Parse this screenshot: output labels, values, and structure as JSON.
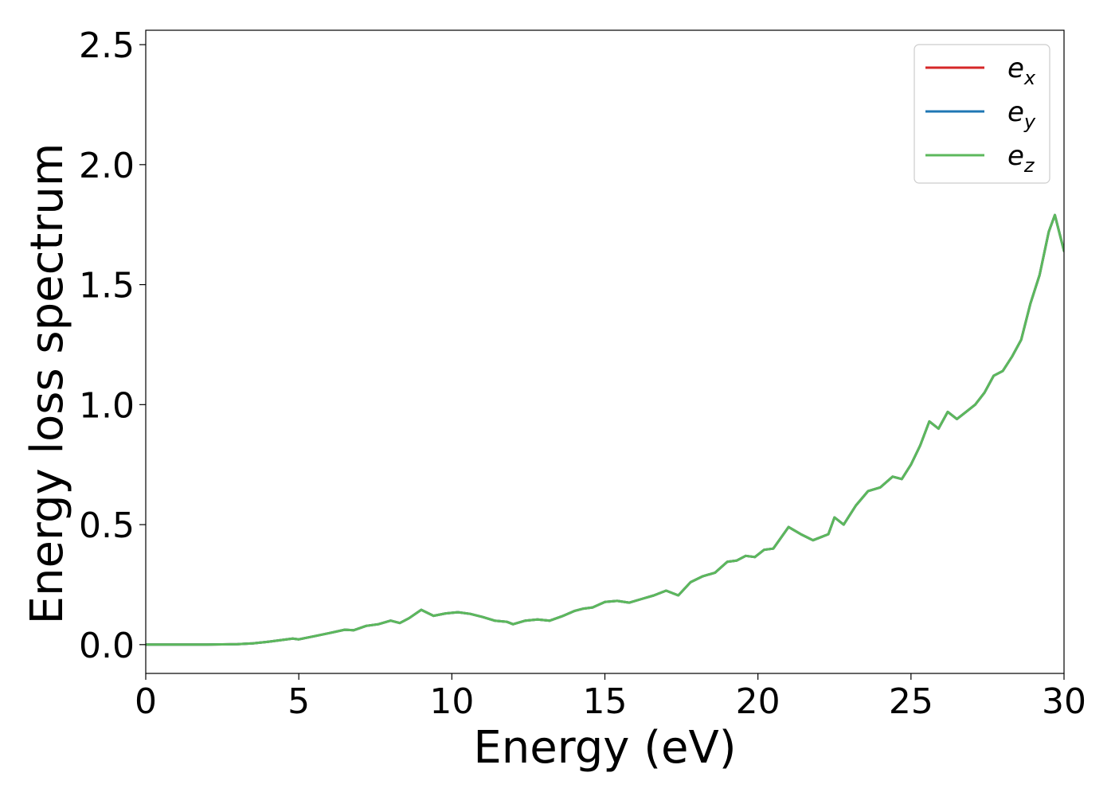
{
  "chart_data": {
    "type": "line",
    "xlabel": "Energy (eV)",
    "ylabel": "Energy loss spectrum",
    "xlim": [
      0,
      30
    ],
    "ylim": [
      -0.12,
      2.56
    ],
    "x_ticks": [
      0,
      5,
      10,
      15,
      20,
      25,
      30
    ],
    "x_tick_labels": [
      "0",
      "5",
      "10",
      "15",
      "20",
      "25",
      "30"
    ],
    "y_ticks": [
      0.0,
      0.5,
      1.0,
      1.5,
      2.0,
      2.5
    ],
    "y_tick_labels": [
      "0.0",
      "0.5",
      "1.0",
      "1.5",
      "2.0",
      "2.5"
    ],
    "grid": false,
    "legend_position": "top-right",
    "x": [
      0,
      1,
      2,
      3,
      3.5,
      4,
      4.5,
      4.8,
      5.0,
      5.5,
      6.0,
      6.5,
      6.8,
      7.2,
      7.6,
      8.0,
      8.3,
      8.6,
      9.0,
      9.4,
      9.8,
      10.2,
      10.6,
      11.0,
      11.4,
      11.8,
      12.0,
      12.4,
      12.8,
      13.2,
      13.6,
      14.0,
      14.3,
      14.6,
      15.0,
      15.4,
      15.8,
      16.2,
      16.6,
      17.0,
      17.4,
      17.8,
      18.2,
      18.6,
      19.0,
      19.3,
      19.6,
      19.9,
      20.2,
      20.5,
      21.0,
      21.4,
      21.8,
      22.0,
      22.3,
      22.5,
      22.8,
      23.2,
      23.6,
      24.0,
      24.4,
      24.7,
      25.0,
      25.3,
      25.6,
      25.9,
      26.2,
      26.5,
      26.8,
      27.1,
      27.4,
      27.7,
      28.0,
      28.3,
      28.6,
      28.9,
      29.2,
      29.5,
      29.7,
      30.0
    ],
    "series": [
      {
        "name": "e_x",
        "color": "#d62728",
        "values": [
          0,
          0,
          0,
          0.002,
          0.005,
          0.012,
          0.02,
          0.025,
          0.022,
          0.035,
          0.048,
          0.062,
          0.06,
          0.078,
          0.085,
          0.1,
          0.09,
          0.11,
          0.145,
          0.12,
          0.13,
          0.135,
          0.128,
          0.115,
          0.1,
          0.095,
          0.085,
          0.1,
          0.105,
          0.1,
          0.118,
          0.14,
          0.15,
          0.155,
          0.178,
          0.182,
          0.175,
          0.19,
          0.205,
          0.225,
          0.205,
          0.26,
          0.285,
          0.3,
          0.345,
          0.35,
          0.37,
          0.365,
          0.395,
          0.4,
          0.49,
          0.46,
          0.435,
          0.445,
          0.46,
          0.53,
          0.5,
          0.58,
          0.64,
          0.655,
          0.7,
          0.69,
          0.75,
          0.83,
          0.93,
          0.9,
          0.97,
          0.94,
          0.97,
          1.0,
          1.05,
          1.12,
          1.14,
          1.2,
          1.27,
          1.42,
          1.54,
          1.72,
          1.79,
          1.64
        ]
      },
      {
        "name": "e_y",
        "color": "#1f77b4",
        "values": [
          0,
          0,
          0,
          0.002,
          0.005,
          0.012,
          0.02,
          0.025,
          0.022,
          0.035,
          0.048,
          0.062,
          0.06,
          0.078,
          0.085,
          0.1,
          0.09,
          0.11,
          0.145,
          0.12,
          0.13,
          0.135,
          0.128,
          0.115,
          0.1,
          0.095,
          0.085,
          0.1,
          0.105,
          0.1,
          0.118,
          0.14,
          0.15,
          0.155,
          0.178,
          0.182,
          0.175,
          0.19,
          0.205,
          0.225,
          0.205,
          0.26,
          0.285,
          0.3,
          0.345,
          0.35,
          0.37,
          0.365,
          0.395,
          0.4,
          0.49,
          0.46,
          0.435,
          0.445,
          0.46,
          0.53,
          0.5,
          0.58,
          0.64,
          0.655,
          0.7,
          0.69,
          0.75,
          0.83,
          0.93,
          0.9,
          0.97,
          0.94,
          0.97,
          1.0,
          1.05,
          1.12,
          1.14,
          1.2,
          1.27,
          1.42,
          1.54,
          1.72,
          1.79,
          1.64
        ]
      },
      {
        "name": "e_z",
        "color": "#5cb85c",
        "values": [
          0,
          0,
          0,
          0.002,
          0.005,
          0.012,
          0.02,
          0.025,
          0.022,
          0.035,
          0.048,
          0.062,
          0.06,
          0.078,
          0.085,
          0.1,
          0.09,
          0.11,
          0.145,
          0.12,
          0.13,
          0.135,
          0.128,
          0.115,
          0.1,
          0.095,
          0.085,
          0.1,
          0.105,
          0.1,
          0.118,
          0.14,
          0.15,
          0.155,
          0.178,
          0.182,
          0.175,
          0.19,
          0.205,
          0.225,
          0.205,
          0.26,
          0.285,
          0.3,
          0.345,
          0.35,
          0.37,
          0.365,
          0.395,
          0.4,
          0.49,
          0.46,
          0.435,
          0.445,
          0.46,
          0.53,
          0.5,
          0.58,
          0.64,
          0.655,
          0.7,
          0.69,
          0.75,
          0.83,
          0.93,
          0.9,
          0.97,
          0.94,
          0.97,
          1.0,
          1.05,
          1.12,
          1.14,
          1.2,
          1.27,
          1.42,
          1.54,
          1.72,
          1.79,
          1.64
        ]
      }
    ],
    "legend": [
      {
        "base": "e",
        "sub": "x",
        "color": "#d62728"
      },
      {
        "base": "e",
        "sub": "y",
        "color": "#1f77b4"
      },
      {
        "base": "e",
        "sub": "z",
        "color": "#5cb85c"
      }
    ]
  }
}
